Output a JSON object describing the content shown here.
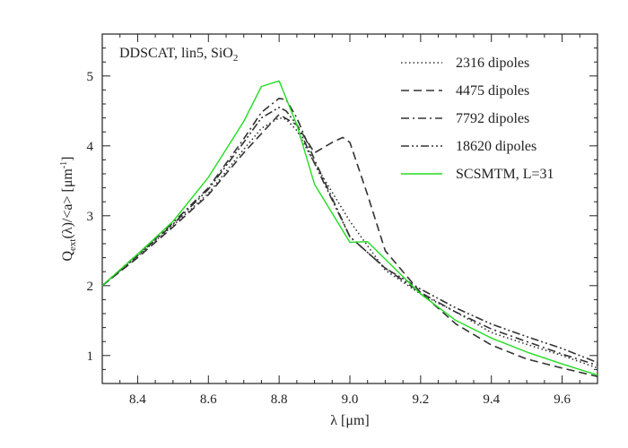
{
  "chart_data": {
    "type": "line",
    "annotation": {
      "main": "DDSCAT, lin5, SiO",
      "sub": "2"
    },
    "xlabel": "λ [μm]",
    "ylabel": {
      "q": "Q",
      "sub": "ext",
      "mid": "(λ)/<a> [μm",
      "sup": "-1",
      "end": "]"
    },
    "xlim": [
      8.3,
      9.7
    ],
    "ylim": [
      0.6,
      5.6
    ],
    "x_ticks": [
      8.4,
      8.6,
      8.8,
      9.0,
      9.2,
      9.4,
      9.6
    ],
    "x_tick_labels": [
      "8.4",
      "8.6",
      "8.8",
      "9.0",
      "9.2",
      "9.4",
      "9.6"
    ],
    "y_ticks": [
      1,
      2,
      3,
      4,
      5
    ],
    "y_tick_labels": [
      "1",
      "2",
      "3",
      "4",
      "5"
    ],
    "legend_position": "top-right",
    "series": [
      {
        "name": "2316 dipoles",
        "color": "#333333",
        "style": "dotted",
        "x": [
          8.3,
          8.4,
          8.5,
          8.6,
          8.7,
          8.75,
          8.8,
          8.82,
          8.85,
          8.9,
          9.0,
          9.1,
          9.2,
          9.3,
          9.4,
          9.5,
          9.6,
          9.7
        ],
        "y": [
          2.0,
          2.42,
          2.86,
          3.32,
          3.95,
          4.25,
          4.4,
          4.38,
          4.22,
          3.75,
          2.92,
          2.22,
          1.88,
          1.62,
          1.33,
          1.16,
          1.0,
          0.82
        ]
      },
      {
        "name": "4475 dipoles",
        "color": "#333333",
        "style": "dashed",
        "x": [
          8.3,
          8.4,
          8.5,
          8.6,
          8.7,
          8.8,
          8.85,
          8.9,
          8.95,
          8.98,
          9.0,
          9.05,
          9.1,
          9.2,
          9.3,
          9.4,
          9.5,
          9.6,
          9.7
        ],
        "y": [
          2.0,
          2.4,
          2.84,
          3.3,
          3.9,
          4.45,
          4.3,
          3.9,
          4.05,
          4.12,
          4.05,
          3.3,
          2.5,
          1.9,
          1.45,
          1.15,
          0.95,
          0.82,
          0.7
        ]
      },
      {
        "name": "7792 dipoles",
        "color": "#333333",
        "style": "dashdot",
        "x": [
          8.3,
          8.4,
          8.5,
          8.6,
          8.7,
          8.75,
          8.8,
          8.82,
          8.85,
          8.9,
          9.0,
          9.1,
          9.2,
          9.3,
          9.4,
          9.5,
          9.6,
          9.7
        ],
        "y": [
          2.0,
          2.45,
          2.9,
          3.4,
          4.1,
          4.48,
          4.68,
          4.66,
          4.4,
          3.8,
          2.7,
          2.25,
          1.9,
          1.62,
          1.38,
          1.2,
          1.02,
          0.86
        ]
      },
      {
        "name": "18620 dipoles",
        "color": "#333333",
        "style": "dashdotdot",
        "x": [
          8.3,
          8.4,
          8.5,
          8.6,
          8.7,
          8.75,
          8.8,
          8.82,
          8.85,
          8.9,
          9.0,
          9.1,
          9.2,
          9.3,
          9.4,
          9.5,
          9.6,
          9.7
        ],
        "y": [
          2.0,
          2.43,
          2.88,
          3.38,
          4.05,
          4.4,
          4.55,
          4.5,
          4.3,
          3.75,
          2.7,
          2.25,
          1.95,
          1.68,
          1.45,
          1.27,
          1.1,
          0.9
        ]
      },
      {
        "name": "SCSMTM, L=31",
        "color": "#22dd22",
        "style": "solid",
        "x": [
          8.3,
          8.4,
          8.5,
          8.6,
          8.7,
          8.75,
          8.8,
          8.85,
          8.9,
          9.0,
          9.05,
          9.1,
          9.2,
          9.3,
          9.4,
          9.5,
          9.6,
          9.7
        ],
        "y": [
          2.0,
          2.45,
          2.92,
          3.55,
          4.35,
          4.85,
          4.93,
          4.3,
          3.45,
          2.62,
          2.63,
          2.38,
          1.88,
          1.5,
          1.25,
          1.05,
          0.88,
          0.72
        ]
      }
    ]
  }
}
